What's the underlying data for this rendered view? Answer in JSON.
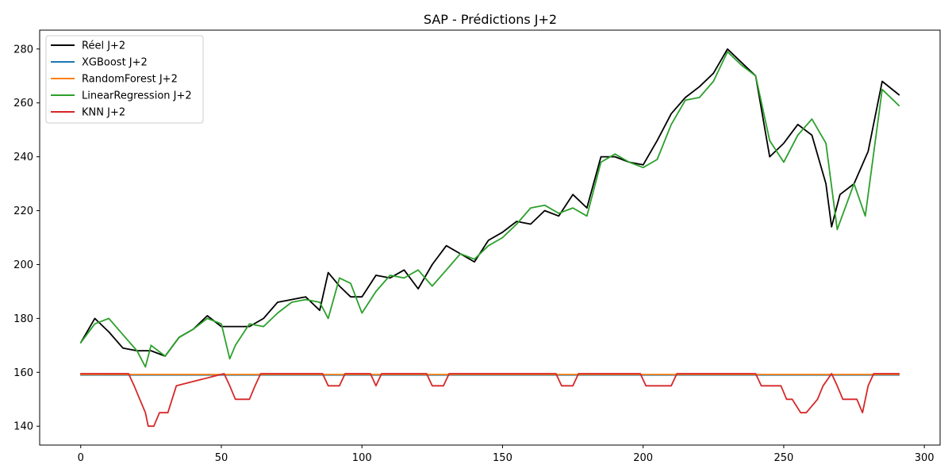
{
  "chart_data": {
    "type": "line",
    "title": "SAP - Prédictions J+2",
    "xlabel": "",
    "ylabel": "",
    "xlim": [
      -14.6,
      305.6
    ],
    "ylim": [
      133.0,
      287.0
    ],
    "x_ticks": [
      0,
      50,
      100,
      150,
      200,
      250,
      300
    ],
    "y_ticks": [
      140,
      160,
      180,
      200,
      220,
      240,
      260,
      280
    ],
    "x_tick_labels": [
      "0",
      "50",
      "100",
      "150",
      "200",
      "250",
      "300"
    ],
    "y_tick_labels": [
      "140",
      "160",
      "180",
      "200",
      "220",
      "240",
      "260",
      "280"
    ],
    "grid": false,
    "legend_position": "top-left",
    "series": [
      {
        "name": "Réel J+2",
        "color": "#000000",
        "x": [
          0,
          5,
          10,
          15,
          20,
          25,
          30,
          35,
          40,
          45,
          50,
          55,
          60,
          65,
          70,
          75,
          80,
          85,
          88,
          92,
          96,
          100,
          105,
          110,
          115,
          120,
          125,
          130,
          135,
          140,
          145,
          150,
          155,
          160,
          165,
          170,
          175,
          180,
          185,
          190,
          195,
          200,
          205,
          210,
          215,
          220,
          225,
          230,
          235,
          240,
          245,
          250,
          255,
          260,
          265,
          267,
          270,
          275,
          280,
          285,
          291
        ],
        "y": [
          171,
          180,
          175,
          169,
          168,
          168,
          166,
          173,
          176,
          181,
          177,
          177,
          177,
          180,
          186,
          187,
          188,
          183,
          197,
          192,
          188,
          188,
          196,
          195,
          198,
          191,
          200,
          207,
          204,
          201,
          209,
          212,
          216,
          215,
          220,
          218,
          226,
          221,
          240,
          240,
          238,
          237,
          246,
          256,
          262,
          266,
          271,
          280,
          275,
          270,
          240,
          245,
          252,
          248,
          230,
          214,
          226,
          230,
          242,
          268,
          263
        ]
      },
      {
        "name": "XGBoost J+2",
        "color": "#1f77b4",
        "x": [
          0,
          291
        ],
        "y": [
          159,
          159
        ]
      },
      {
        "name": "RandomForest J+2",
        "color": "#ff7f0e",
        "x": [
          0,
          291
        ],
        "y": [
          159.2,
          159.2
        ]
      },
      {
        "name": "LinearRegression J+2",
        "color": "#2ca02c",
        "x": [
          0,
          5,
          10,
          15,
          20,
          23,
          25,
          30,
          35,
          40,
          45,
          50,
          53,
          55,
          60,
          65,
          70,
          75,
          80,
          85,
          88,
          92,
          96,
          100,
          105,
          110,
          115,
          120,
          125,
          130,
          135,
          140,
          145,
          150,
          155,
          160,
          165,
          170,
          175,
          180,
          185,
          190,
          195,
          200,
          205,
          210,
          215,
          220,
          225,
          230,
          235,
          240,
          245,
          250,
          255,
          260,
          265,
          269,
          275,
          279,
          285,
          291
        ],
        "y": [
          171,
          178,
          180,
          174,
          168,
          162,
          170,
          166,
          173,
          176,
          180,
          178,
          165,
          170,
          178,
          177,
          182,
          186,
          187,
          186,
          180,
          195,
          193,
          182,
          190,
          196,
          195,
          198,
          192,
          198,
          204,
          202,
          207,
          210,
          215,
          221,
          222,
          219,
          221,
          218,
          238,
          241,
          238,
          236,
          239,
          252,
          261,
          262,
          268,
          279,
          274,
          270,
          246,
          238,
          248,
          254,
          245,
          213,
          230,
          218,
          265,
          259
        ]
      },
      {
        "name": "KNN J+2",
        "color": "#d62728",
        "x": [
          0,
          17,
          19,
          21,
          23,
          24,
          26,
          28,
          31,
          34,
          51,
          53,
          55,
          60,
          62,
          64,
          86,
          88,
          92,
          94,
          103,
          105,
          107,
          123,
          125,
          129,
          131,
          169,
          171,
          175,
          177,
          199,
          201,
          210,
          212,
          240,
          242,
          249,
          251,
          253,
          256,
          258,
          262,
          264,
          267,
          269,
          271,
          276,
          278,
          280,
          282,
          291
        ],
        "y": [
          159.5,
          159.5,
          155,
          150,
          145,
          140,
          140,
          145,
          145,
          155,
          159.5,
          155,
          150,
          150,
          155,
          159.5,
          159.5,
          155,
          155,
          159.5,
          159.5,
          155,
          159.5,
          159.5,
          155,
          155,
          159.5,
          159.5,
          155,
          155,
          159.5,
          159.5,
          155,
          155,
          159.5,
          159.5,
          155,
          155,
          150,
          150,
          145,
          145,
          150,
          155,
          159.5,
          155,
          150,
          150,
          145,
          155,
          159.5,
          159.5
        ]
      }
    ]
  }
}
